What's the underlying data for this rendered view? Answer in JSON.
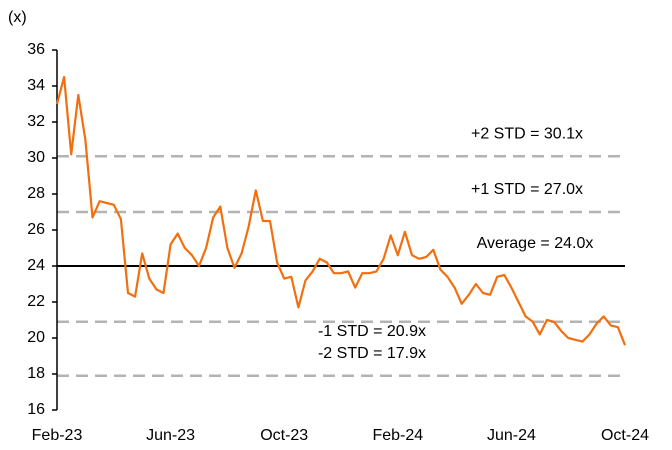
{
  "chart_data": {
    "type": "line",
    "y_axis_label": "(x)",
    "categories": [
      "Feb-23",
      null,
      null,
      null,
      null,
      null,
      null,
      null,
      null,
      null,
      null,
      null,
      null,
      null,
      null,
      null,
      "Jun-23",
      null,
      null,
      null,
      null,
      null,
      null,
      null,
      null,
      null,
      null,
      null,
      null,
      null,
      null,
      null,
      "Oct-23",
      null,
      null,
      null,
      null,
      null,
      null,
      null,
      null,
      null,
      null,
      null,
      null,
      null,
      null,
      null,
      "Feb-24",
      null,
      null,
      null,
      null,
      null,
      null,
      null,
      null,
      null,
      null,
      null,
      null,
      null,
      null,
      null,
      "Jun-24",
      null,
      null,
      null,
      null,
      null,
      null,
      null,
      null,
      null,
      null,
      null,
      null,
      null,
      null,
      null,
      "Oct-24"
    ],
    "series": [
      {
        "color": "#f26f0f",
        "values": [
          33.0,
          34.5,
          30.2,
          33.5,
          31.0,
          26.7,
          27.6,
          27.5,
          27.4,
          26.6,
          22.5,
          22.3,
          24.7,
          23.3,
          22.7,
          22.5,
          25.2,
          25.8,
          25.0,
          24.6,
          24.0,
          25.0,
          26.7,
          27.3,
          25.0,
          23.9,
          24.7,
          26.2,
          28.2,
          26.5,
          26.5,
          24.2,
          23.3,
          23.4,
          21.7,
          23.2,
          23.7,
          24.4,
          24.2,
          23.6,
          23.6,
          23.7,
          22.8,
          23.6,
          23.6,
          23.7,
          24.4,
          25.7,
          24.6,
          25.9,
          24.6,
          24.4,
          24.5,
          24.9,
          23.8,
          23.4,
          22.8,
          21.9,
          22.4,
          23.0,
          22.5,
          22.4,
          23.4,
          23.5,
          22.8,
          22.0,
          21.2,
          20.9,
          20.2,
          21.0,
          20.9,
          20.4,
          20.0,
          19.9,
          19.8,
          20.2,
          20.8,
          21.2,
          20.7,
          20.6,
          19.6
        ]
      }
    ],
    "reference_lines": [
      {
        "label": "+2 STD = 30.1x",
        "value": 30.1,
        "color": "#b3b3b3",
        "dashed": true
      },
      {
        "label": "+1 STD = 27.0x",
        "value": 27.0,
        "color": "#b3b3b3",
        "dashed": true
      },
      {
        "label": "Average = 24.0x",
        "value": 24.0,
        "color": "#000000",
        "dashed": false
      },
      {
        "label": "-1 STD = 20.9x",
        "value": 20.9,
        "color": "#b3b3b3",
        "dashed": true
      },
      {
        "label": "-2 STD = 17.9x",
        "value": 17.9,
        "color": "#b3b3b3",
        "dashed": true
      }
    ],
    "ylim": [
      16,
      36
    ],
    "yticks": [
      16,
      18,
      20,
      22,
      24,
      26,
      28,
      30,
      32,
      34,
      36
    ],
    "grid": false
  }
}
